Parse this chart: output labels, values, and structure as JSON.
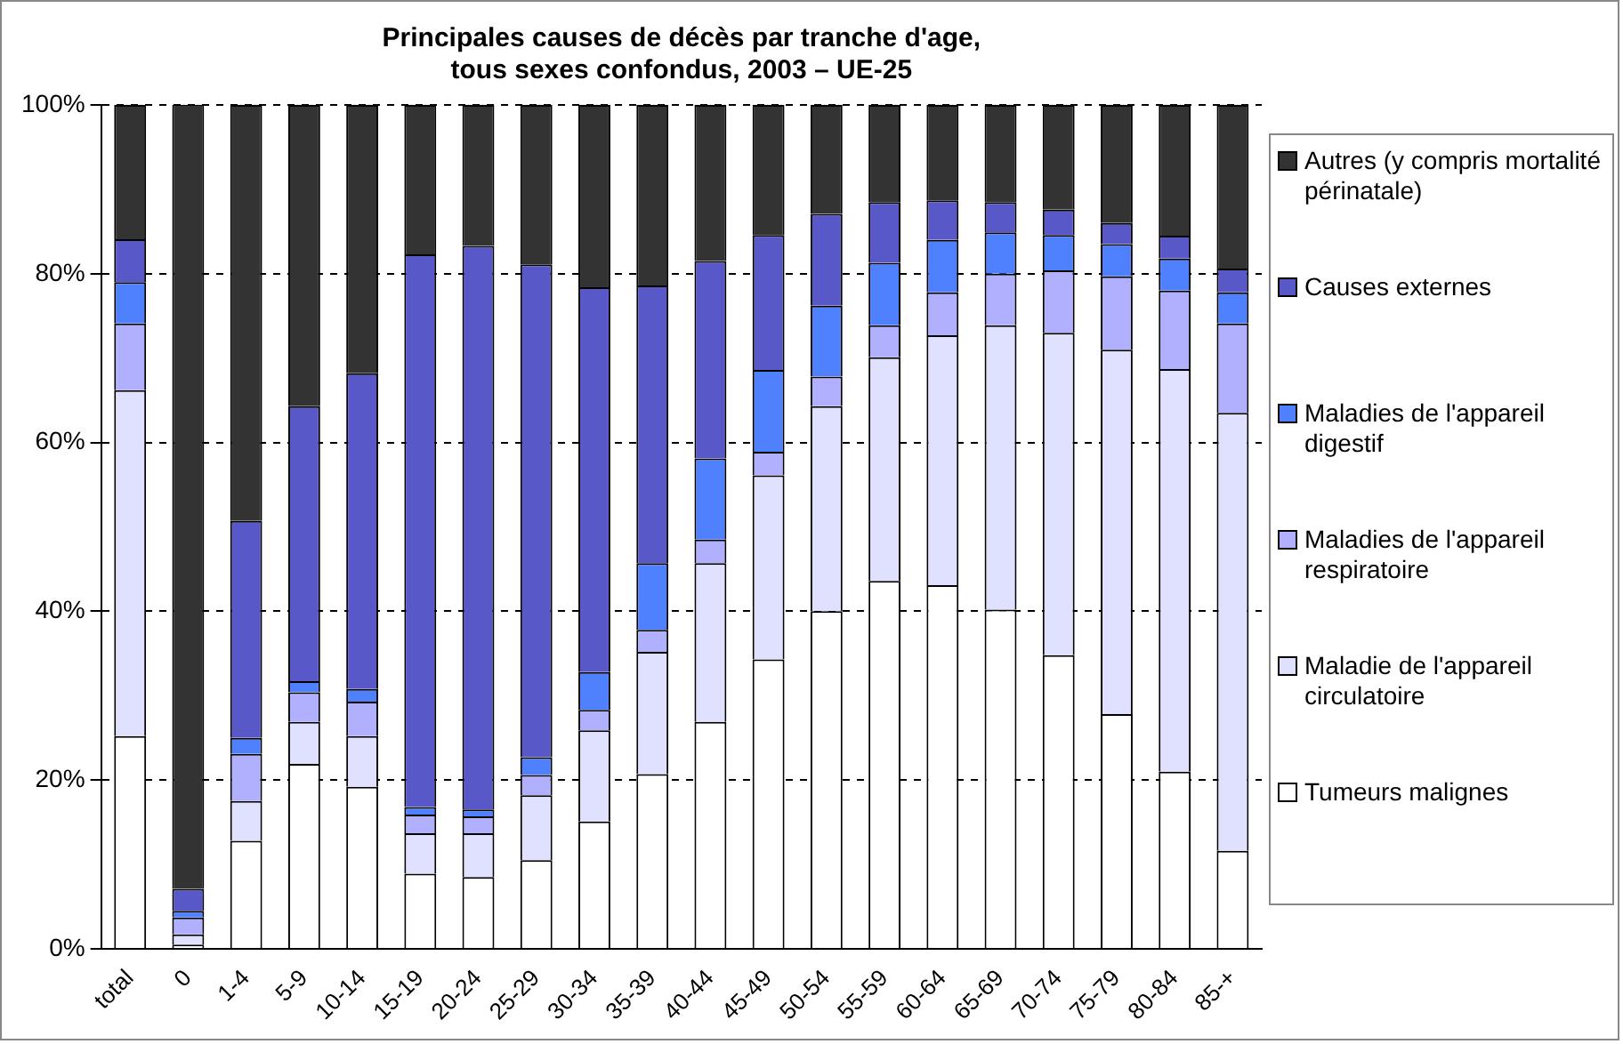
{
  "chart_data": {
    "type": "bar",
    "title": "Principales causes de décès par tranche d'age,\ntous sexes confondus, 2003 – UE-25",
    "stacked": true,
    "grid": "y",
    "legend": "right",
    "categories": [
      "total",
      "0",
      "1-4",
      "5-9",
      "10-14",
      "15-19",
      "20-24",
      "25-29",
      "30-34",
      "35-39",
      "40-44",
      "45-49",
      "50-54",
      "55-59",
      "60-64",
      "65-69",
      "70-74",
      "75-79",
      "80-84",
      "85-+"
    ],
    "ylim": [
      0,
      100
    ],
    "yticks": [
      {
        "value": 0,
        "label": "0%"
      },
      {
        "value": 20,
        "label": "20%"
      },
      {
        "value": 40,
        "label": "40%"
      },
      {
        "value": 60,
        "label": "60%"
      },
      {
        "value": 80,
        "label": "80%"
      },
      {
        "value": 100,
        "label": "100%"
      }
    ],
    "series": [
      {
        "name": "Tumeurs malignes",
        "color": "#ffffff",
        "values": [
          25.2,
          0.5,
          12.8,
          21.9,
          19.2,
          8.9,
          8.5,
          10.5,
          15.1,
          20.7,
          26.9,
          34.3,
          40.0,
          43.6,
          43.1,
          40.2,
          34.8,
          27.8,
          21.0,
          11.6
        ]
      },
      {
        "name": "Maladie de l'appareil circulatoire",
        "color": "#e0e0ff",
        "values": [
          41.0,
          1.2,
          4.7,
          5.0,
          6.0,
          4.8,
          5.2,
          7.7,
          10.8,
          14.5,
          18.8,
          21.8,
          24.3,
          26.5,
          29.6,
          33.7,
          38.2,
          43.2,
          47.7,
          51.9
        ]
      },
      {
        "name": "Maladies de l'appareil respiratoire",
        "color": "#b0b0ff",
        "values": [
          7.9,
          2.0,
          5.6,
          3.5,
          4.1,
          2.2,
          2.0,
          2.4,
          2.4,
          2.6,
          2.8,
          2.8,
          3.5,
          3.8,
          5.1,
          6.1,
          7.4,
          8.7,
          9.3,
          10.6
        ]
      },
      {
        "name": "Maladies de l'appareil digestif",
        "color": "#4f81ff",
        "values": [
          4.9,
          0.8,
          1.9,
          1.3,
          1.5,
          0.9,
          0.8,
          2.1,
          4.5,
          7.9,
          9.6,
          9.7,
          8.4,
          7.4,
          6.2,
          4.9,
          4.2,
          3.8,
          3.8,
          3.7
        ]
      },
      {
        "name": "Causes externes",
        "color": "#5858c8",
        "values": [
          5.1,
          2.6,
          25.7,
          32.6,
          37.4,
          65.5,
          66.8,
          58.4,
          45.6,
          32.9,
          23.4,
          16.0,
          10.9,
          7.2,
          4.7,
          3.6,
          3.0,
          2.5,
          2.7,
          2.8
        ]
      },
      {
        "name": "Autres (y compris mortalité périnatale)",
        "color": "#333333",
        "values": [
          15.9,
          93.0,
          49.3,
          35.7,
          31.8,
          17.7,
          16.7,
          18.9,
          21.6,
          21.4,
          18.5,
          15.4,
          12.9,
          11.5,
          11.3,
          11.5,
          12.4,
          14.0,
          15.5,
          19.4
        ]
      }
    ]
  }
}
